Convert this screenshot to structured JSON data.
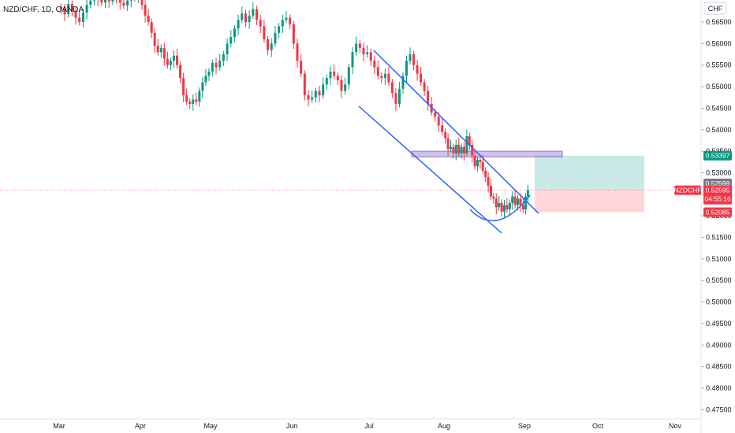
{
  "header": {
    "symbol": "NZD/CHF, 1D, OANDA"
  },
  "price_scale": {
    "currency": "CHF",
    "labels": [
      "0.56500",
      "0.56000",
      "0.55500",
      "0.55000",
      "0.54500",
      "0.54000",
      "0.53500",
      "0.53000",
      "0.52500",
      "0.52000",
      "0.51500",
      "0.51000",
      "0.50500",
      "0.50000",
      "0.49500",
      "0.49000",
      "0.48500",
      "0.48000",
      "0.47500"
    ]
  },
  "tags": {
    "target": {
      "text": "0.53397",
      "color": "#089981"
    },
    "prev_close": {
      "text": "0.52599",
      "color": "#787b86"
    },
    "current_price": {
      "text": "0.52595",
      "color": "#f23645"
    },
    "countdown": {
      "text": "04:55:16",
      "color": "#f23645"
    },
    "stop": {
      "text": "0.52085",
      "color": "#f23645"
    },
    "symbol_tag": {
      "text": "NZDCHF",
      "color": "#f23645"
    }
  },
  "colors": {
    "up": "#089981",
    "down": "#f23645",
    "channel": "#2962ff",
    "zone": "#9575cd",
    "profit_zone": "#b2dfdb",
    "loss_zone": "#ffcdd2"
  },
  "chart_data": {
    "type": "candlestick",
    "x_axis": {
      "labels": [
        "Mar",
        "Apr",
        "May",
        "Jun",
        "Jul",
        "Aug",
        "Sep",
        "Oct",
        "Nov"
      ]
    },
    "y_axis": {
      "range": [
        0.4733,
        0.5711
      ],
      "ticks": [
        0.565,
        0.56,
        0.555,
        0.55,
        0.545,
        0.54,
        0.535,
        0.53,
        0.525,
        0.52,
        0.515,
        0.51,
        0.505,
        0.5,
        0.495,
        0.49,
        0.485,
        0.48,
        0.475
      ]
    },
    "series": [
      {
        "month": "Mar",
        "closes": [
          0.568,
          0.5668,
          0.5692,
          0.5675,
          0.566,
          0.565,
          0.5672,
          0.569,
          0.57,
          0.571,
          0.5702,
          0.5695,
          0.5708,
          0.5698,
          0.5712,
          0.5705,
          0.5695,
          0.5688,
          0.57,
          0.571,
          0.5706,
          0.5712
        ]
      },
      {
        "month": "Apr",
        "closes": [
          0.569,
          0.5665,
          0.565,
          0.5625,
          0.5595,
          0.558,
          0.559,
          0.5565,
          0.555,
          0.556,
          0.5572,
          0.555,
          0.552,
          0.548,
          0.5465,
          0.546,
          0.547,
          0.5465,
          0.549,
          0.551,
          0.5525,
          0.5535
        ]
      },
      {
        "month": "May",
        "closes": [
          0.5555,
          0.5545,
          0.556,
          0.5575,
          0.56,
          0.5615,
          0.5635,
          0.5655,
          0.567,
          0.565,
          0.5665,
          0.568,
          0.5655,
          0.564,
          0.561,
          0.5585,
          0.56,
          0.5625,
          0.564,
          0.5655,
          0.566,
          0.5645
        ]
      },
      {
        "month": "Jun",
        "closes": [
          0.56,
          0.556,
          0.553,
          0.548,
          0.547,
          0.5475,
          0.549,
          0.548,
          0.5505,
          0.552,
          0.5535,
          0.5525,
          0.5515,
          0.549,
          0.5505,
          0.5545,
          0.558,
          0.56,
          0.559,
          0.5575,
          0.558
        ]
      },
      {
        "month": "Jul",
        "closes": [
          0.556,
          0.5545,
          0.5525,
          0.552,
          0.553,
          0.551,
          0.5485,
          0.546,
          0.5495,
          0.5525,
          0.556,
          0.5575,
          0.555,
          0.553,
          0.551,
          0.549,
          0.546,
          0.544,
          0.543,
          0.541,
          0.5395
        ]
      },
      {
        "month": "Aug",
        "closes": [
          0.538,
          0.5355,
          0.536,
          0.5345,
          0.5365,
          0.5345,
          0.536,
          0.5345,
          0.5385,
          0.5365,
          0.534,
          0.5315,
          0.533,
          0.5325,
          0.5305,
          0.529,
          0.527,
          0.5245,
          0.524,
          0.522,
          0.523,
          0.521,
          0.5225,
          0.5215,
          0.523,
          0.5245,
          0.5225,
          0.524,
          0.5225,
          0.5215
        ]
      },
      {
        "month": "Sep",
        "closes": [
          0.5245,
          0.526
        ]
      }
    ]
  },
  "drawings": {
    "channel_upper_start": {
      "date": "Jul 2",
      "price": 0.558
    },
    "channel_upper_end": {
      "date": "Sep 12",
      "price": 0.518
    },
    "channel_lower_start": {
      "date": "Jun 27",
      "price": 0.545
    },
    "channel_lower_end": {
      "date": "Aug 29",
      "price": 0.516
    },
    "resistance_zone": {
      "from": "Aug 1",
      "to": "Sep 20",
      "high": 0.535,
      "low": 0.5337
    },
    "position": {
      "from": "Sep 5",
      "to": "Oct 25",
      "entry": 0.52595,
      "target": 0.53397,
      "stop": 0.52085
    }
  }
}
